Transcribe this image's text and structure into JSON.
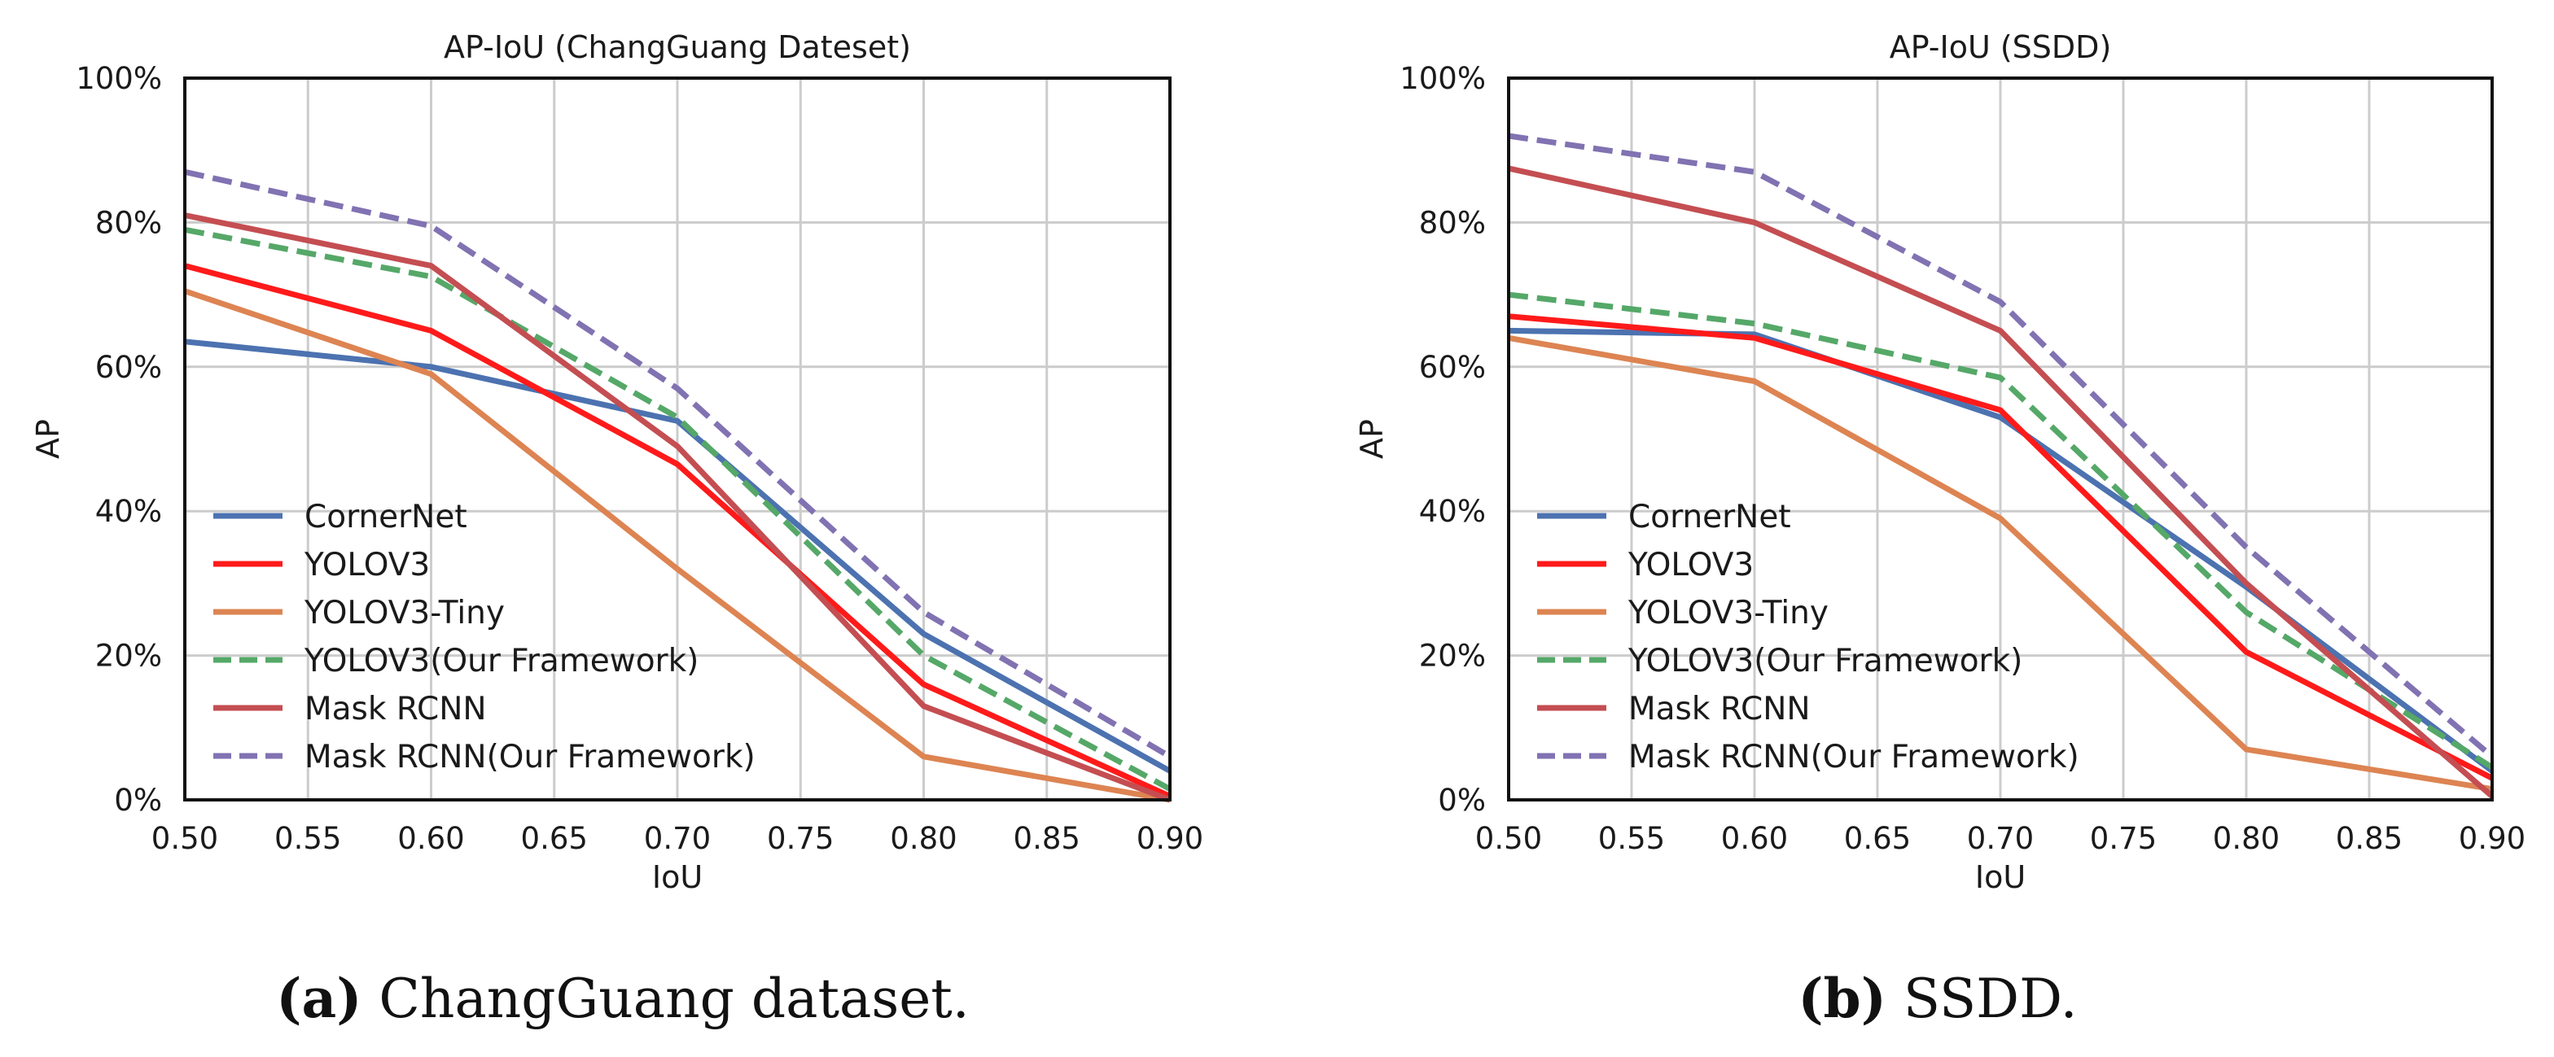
{
  "chart_data": [
    {
      "type": "line",
      "title": "AP-IoU (ChangGuang Dateset)",
      "xlabel": "IoU",
      "ylabel": "AP",
      "xlim": [
        0.5,
        0.9
      ],
      "ylim": [
        0,
        100
      ],
      "x": [
        0.5,
        0.6,
        0.7,
        0.8,
        0.9
      ],
      "x_ticks": [
        "0.50",
        "0.55",
        "0.60",
        "0.65",
        "0.70",
        "0.75",
        "0.80",
        "0.85",
        "0.90"
      ],
      "y_ticks": [
        "0%",
        "20%",
        "40%",
        "60%",
        "80%",
        "100%"
      ],
      "grid": true,
      "legend": "lower-left",
      "series": [
        {
          "name": "CornerNet",
          "color": "#4c72b0",
          "style": "solid",
          "values": [
            63.5,
            60,
            52.5,
            23,
            4
          ]
        },
        {
          "name": "YOLOV3",
          "color": "#ff1a1a",
          "style": "solid",
          "values": [
            74,
            65,
            46.5,
            16,
            0.5
          ]
        },
        {
          "name": "YOLOV3-Tiny",
          "color": "#dd8452",
          "style": "solid",
          "values": [
            70.5,
            59,
            32,
            6,
            0
          ]
        },
        {
          "name": "YOLOV3(Our Framework)",
          "color": "#55a868",
          "style": "dashed",
          "values": [
            79,
            72.5,
            53,
            20,
            1.5
          ]
        },
        {
          "name": "Mask RCNN",
          "color": "#c44e52",
          "style": "solid",
          "values": [
            81,
            74,
            49,
            13,
            0
          ]
        },
        {
          "name": "Mask RCNN(Our Framework)",
          "color": "#8172b2",
          "style": "dashed",
          "values": [
            87,
            79.5,
            57,
            26,
            6
          ]
        }
      ]
    },
    {
      "type": "line",
      "title": "AP-IoU (SSDD)",
      "xlabel": "IoU",
      "ylabel": "AP",
      "xlim": [
        0.5,
        0.9
      ],
      "ylim": [
        0,
        100
      ],
      "x": [
        0.5,
        0.6,
        0.7,
        0.8,
        0.9
      ],
      "x_ticks": [
        "0.50",
        "0.55",
        "0.60",
        "0.65",
        "0.70",
        "0.75",
        "0.80",
        "0.85",
        "0.90"
      ],
      "y_ticks": [
        "0%",
        "20%",
        "40%",
        "60%",
        "80%",
        "100%"
      ],
      "grid": true,
      "legend": "lower-left",
      "series": [
        {
          "name": "CornerNet",
          "color": "#4c72b0",
          "style": "solid",
          "values": [
            65,
            64.5,
            53,
            29.5,
            4
          ]
        },
        {
          "name": "YOLOV3",
          "color": "#ff1a1a",
          "style": "solid",
          "values": [
            67,
            64,
            54,
            20.5,
            3
          ]
        },
        {
          "name": "YOLOV3-Tiny",
          "color": "#dd8452",
          "style": "solid",
          "values": [
            64,
            58,
            39,
            7,
            1.5
          ]
        },
        {
          "name": "YOLOV3(Our Framework)",
          "color": "#55a868",
          "style": "dashed",
          "values": [
            70,
            66,
            58.5,
            26,
            4.5
          ]
        },
        {
          "name": "Mask RCNN",
          "color": "#c44e52",
          "style": "solid",
          "values": [
            87.5,
            80,
            65,
            30,
            0.5
          ]
        },
        {
          "name": "Mask RCNN(Our Framework)",
          "color": "#8172b2",
          "style": "dashed",
          "values": [
            92,
            87,
            69,
            35,
            6
          ]
        }
      ]
    }
  ],
  "captions": [
    {
      "letter": "(a)",
      "text": " ChangGuang dataset."
    },
    {
      "letter": "(b)",
      "text": " SSDD."
    }
  ]
}
